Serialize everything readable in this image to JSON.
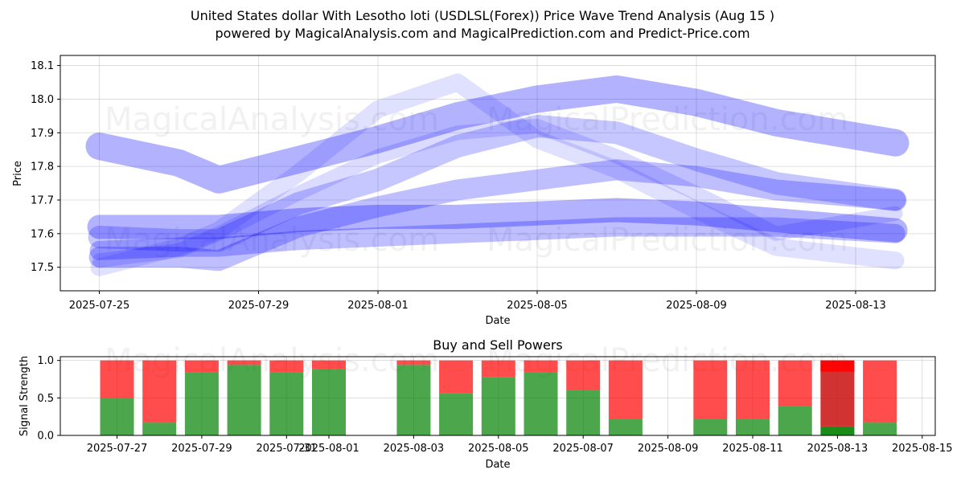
{
  "title_line1": "United States dollar With Lesotho loti (USDLSL(Forex)) Price Wave Trend Analysis (Aug 15 )",
  "title_line2": "powered by MagicalAnalysis.com and MagicalPrediction.com and Predict-Price.com",
  "watermarks": [
    "MagicalAnalysis.com",
    "MagicalPrediction.com"
  ],
  "colors": {
    "wave": "#0000ff",
    "buy": "#008000",
    "sell": "#ff0000",
    "grid": "#b0b0b0"
  },
  "chart_data": [
    {
      "type": "line",
      "title": "",
      "xlabel": "Date",
      "ylabel": "Price",
      "ylim": [
        17.43,
        18.13
      ],
      "grid": true,
      "yticks": [
        17.5,
        17.6,
        17.7,
        17.8,
        17.9,
        18.0,
        18.1
      ],
      "yticklabels": [
        "17.5",
        "17.6",
        "17.7",
        "17.8",
        "17.9",
        "18.0",
        "18.1"
      ],
      "xticklabels": [
        "2025-07-25",
        "2025-07-29",
        "2025-08-01",
        "2025-08-05",
        "2025-08-09",
        "2025-08-13"
      ],
      "x": [
        "2025-07-25",
        "2025-07-27",
        "2025-07-28",
        "2025-07-30",
        "2025-08-01",
        "2025-08-03",
        "2025-08-05",
        "2025-08-07",
        "2025-08-09",
        "2025-08-11",
        "2025-08-14"
      ],
      "series": [
        {
          "values": [
            17.86,
            17.81,
            17.76,
            17.82,
            17.88,
            17.95,
            18.0,
            18.03,
            17.99,
            17.93,
            17.87
          ]
        },
        {
          "values": [
            17.59,
            17.58,
            17.58,
            17.69,
            17.76,
            17.86,
            17.92,
            17.9,
            17.82,
            17.75,
            17.7
          ]
        },
        {
          "values": [
            17.53,
            17.53,
            17.52,
            17.62,
            17.68,
            17.73,
            17.76,
            17.79,
            17.77,
            17.73,
            17.7
          ]
        },
        {
          "values": [
            17.62,
            17.62,
            17.62,
            17.64,
            17.65,
            17.65,
            17.66,
            17.67,
            17.66,
            17.64,
            17.61
          ]
        },
        {
          "values": [
            17.55,
            17.56,
            17.56,
            17.58,
            17.59,
            17.6,
            17.61,
            17.62,
            17.62,
            17.62,
            17.6
          ]
        },
        {
          "values": [
            17.5,
            17.56,
            17.61,
            17.78,
            17.97,
            18.05,
            17.88,
            17.79,
            17.67,
            17.56,
            17.52
          ]
        },
        {
          "values": [
            17.52,
            17.55,
            17.6,
            17.72,
            17.83,
            17.9,
            17.92,
            17.83,
            17.72,
            17.6,
            17.66
          ]
        }
      ]
    },
    {
      "type": "bar",
      "title": "Buy and Sell Powers",
      "xlabel": "Date",
      "ylabel": "Signal Strength",
      "ylim": [
        0,
        1.05
      ],
      "grid": true,
      "yticks": [
        0.0,
        0.5,
        1.0
      ],
      "yticklabels": [
        "0.0",
        "0.5",
        "1.0"
      ],
      "xticklabels": [
        "2025-07-27",
        "2025-07-29",
        "2025-07-31",
        "2025-08-01",
        "2025-08-03",
        "2025-08-05",
        "2025-08-07",
        "2025-08-09",
        "2025-08-11",
        "2025-08-13",
        "2025-08-15"
      ],
      "categories": [
        "2025-07-27",
        "2025-07-28",
        "2025-07-29",
        "2025-07-30",
        "2025-07-31",
        "2025-08-01",
        "2025-08-03",
        "2025-08-04",
        "2025-08-05",
        "2025-08-06",
        "2025-08-07",
        "2025-08-08",
        "2025-08-10",
        "2025-08-11",
        "2025-08-12",
        "2025-08-13",
        "2025-08-14"
      ],
      "series": [
        {
          "name": "Buy",
          "values": [
            0.5,
            0.17,
            0.84,
            0.94,
            0.84,
            0.88,
            0.94,
            0.56,
            0.78,
            0.84,
            0.61,
            0.22,
            0.22,
            0.22,
            0.39,
            0.12,
            0.17
          ]
        },
        {
          "name": "Sell",
          "values": [
            0.5,
            0.83,
            0.16,
            0.06,
            0.16,
            0.12,
            0.06,
            0.44,
            0.22,
            0.16,
            0.39,
            0.78,
            0.78,
            0.78,
            0.61,
            0.88,
            0.83
          ]
        }
      ]
    }
  ]
}
